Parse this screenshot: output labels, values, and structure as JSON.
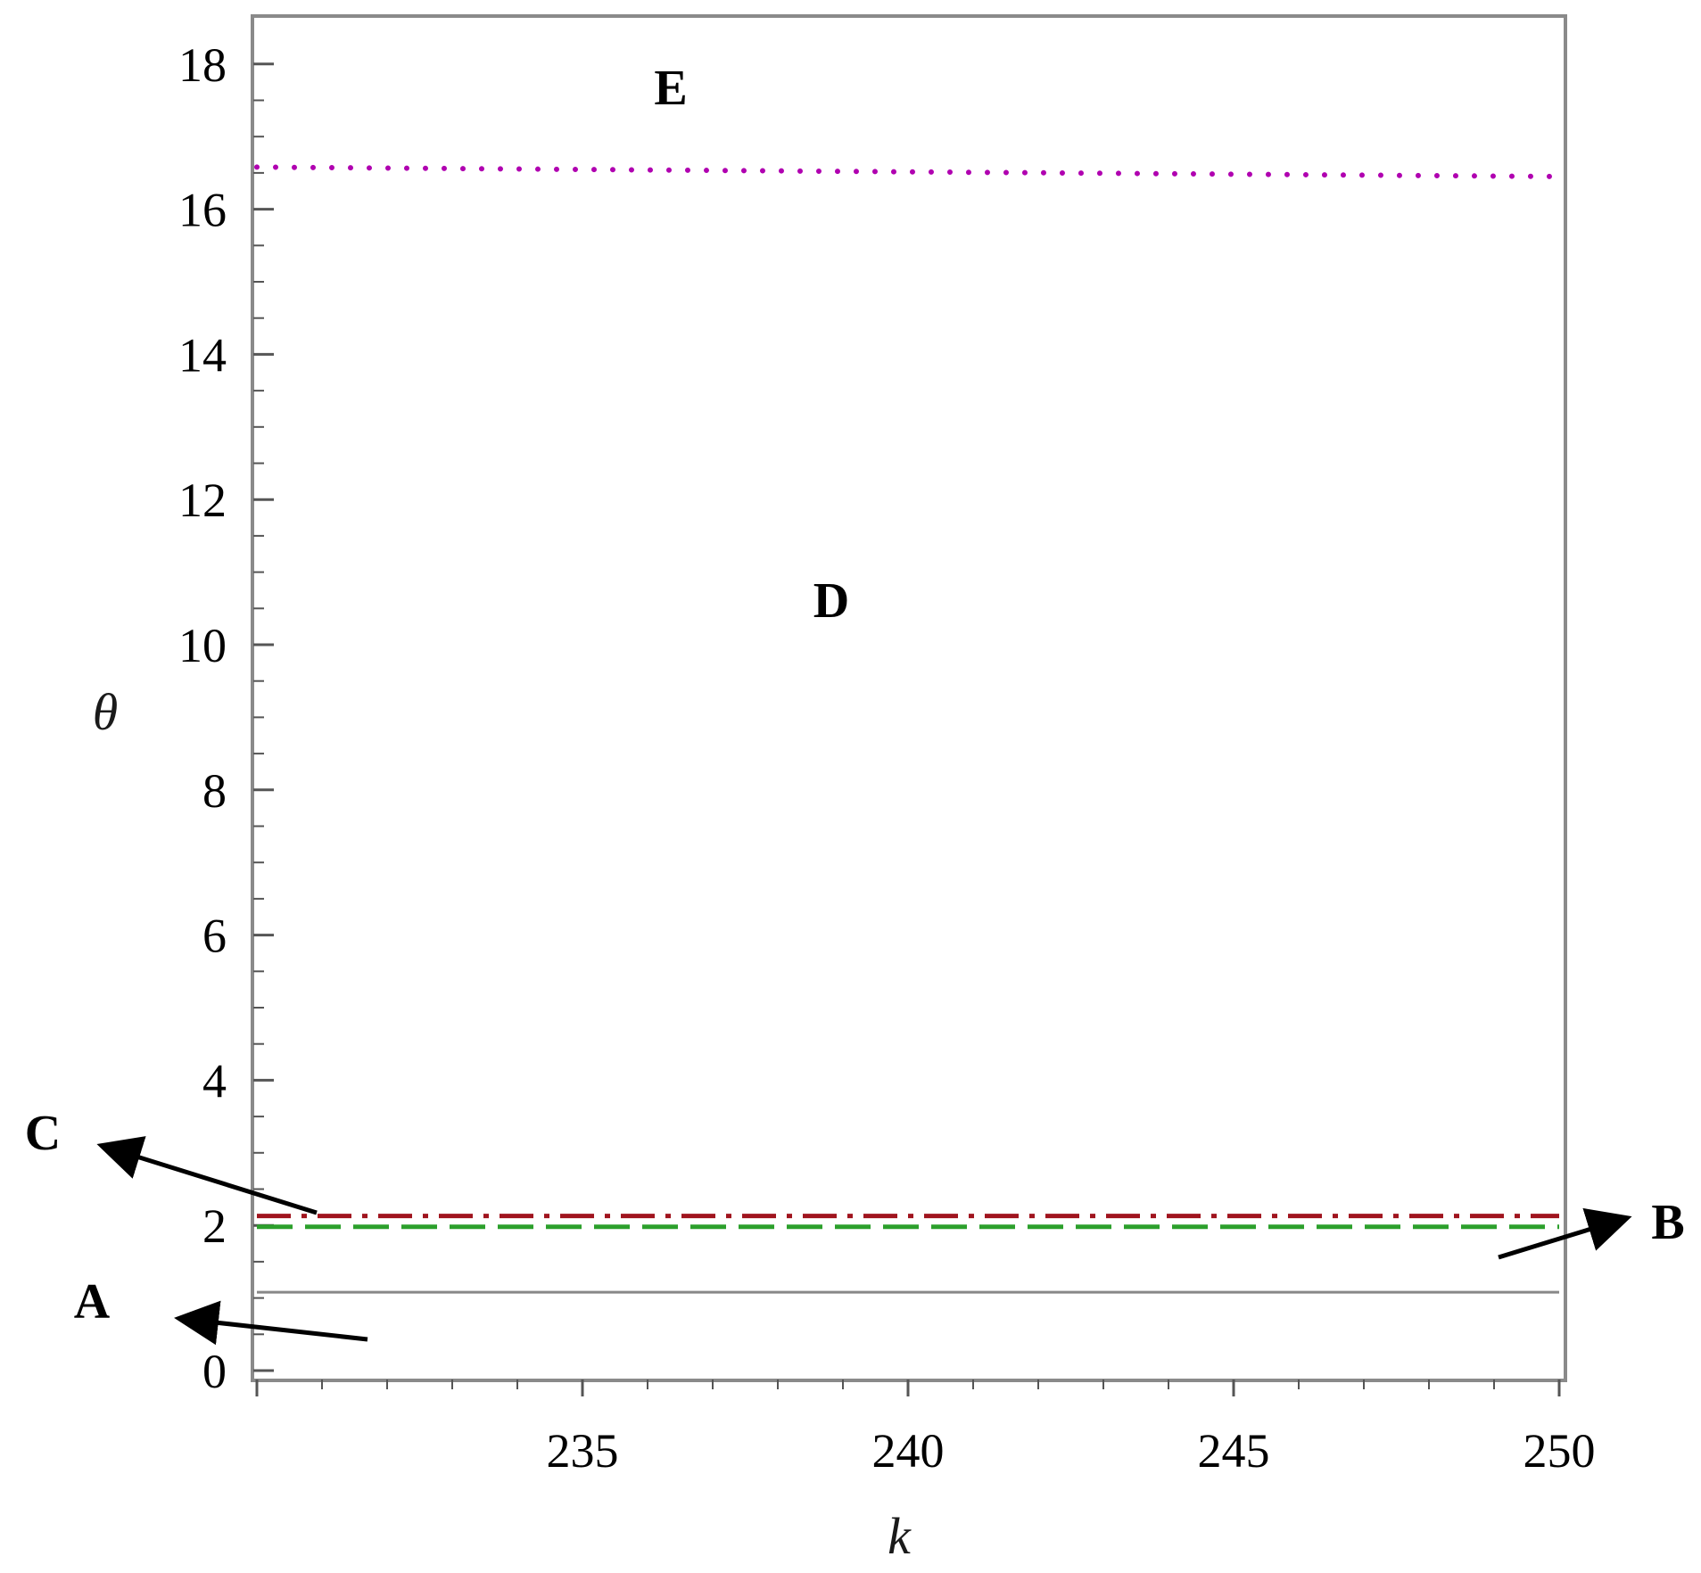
{
  "chart_data": {
    "type": "line",
    "xlabel": "k",
    "ylabel": "θ",
    "xlim": [
      230,
      250
    ],
    "ylim": [
      0,
      18.5
    ],
    "x_ticks": [
      "235",
      "240",
      "245",
      "250"
    ],
    "y_ticks": [
      "0",
      "2",
      "4",
      "6",
      "8",
      "10",
      "12",
      "14",
      "16",
      "18"
    ],
    "grid": false,
    "series": [
      {
        "color": "#888888",
        "style": "solid",
        "x": [
          230,
          250
        ],
        "values": [
          1.08,
          1.08
        ]
      },
      {
        "color": "#2ca02c",
        "style": "dashed",
        "x": [
          230,
          250
        ],
        "values": [
          1.98,
          1.98
        ]
      },
      {
        "color": "#a0141e",
        "style": "dashdot",
        "x": [
          230,
          250
        ],
        "values": [
          2.13,
          2.13
        ]
      },
      {
        "color": "#b000b0",
        "style": "dotted",
        "x": [
          230,
          250
        ],
        "values": [
          16.58,
          16.45
        ]
      }
    ],
    "annotations": [
      {
        "id": "A",
        "text": "A"
      },
      {
        "id": "B",
        "text": "B"
      },
      {
        "id": "C",
        "text": "C"
      },
      {
        "id": "D",
        "text": "D"
      },
      {
        "id": "E",
        "text": "E"
      }
    ]
  }
}
